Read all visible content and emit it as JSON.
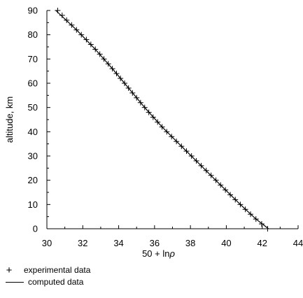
{
  "chart_data": {
    "type": "line",
    "title": "",
    "xlabel": "50 + ln",
    "xlabel_symbol": "ρ",
    "ylabel": "altitude, km",
    "xlim": [
      30,
      44
    ],
    "ylim": [
      0,
      90
    ],
    "xticks": [
      30,
      32,
      34,
      36,
      38,
      40,
      42,
      44
    ],
    "yticks": [
      0,
      10,
      20,
      30,
      40,
      50,
      60,
      70,
      80,
      90
    ],
    "grid": false,
    "legend_position": "bottom-left",
    "series": [
      {
        "name": "experimental data",
        "style": "markers",
        "marker": "+",
        "points": [
          [
            30.6,
            90
          ],
          [
            30.85,
            88
          ],
          [
            31.1,
            86
          ],
          [
            31.38,
            84
          ],
          [
            31.65,
            82
          ],
          [
            31.92,
            80
          ],
          [
            32.2,
            78
          ],
          [
            32.45,
            76
          ],
          [
            32.7,
            74
          ],
          [
            32.95,
            72
          ],
          [
            33.18,
            70
          ],
          [
            33.42,
            68
          ],
          [
            33.65,
            66
          ],
          [
            33.88,
            64
          ],
          [
            34.1,
            62
          ],
          [
            34.33,
            60
          ],
          [
            34.55,
            58
          ],
          [
            34.77,
            56
          ],
          [
            35.0,
            54
          ],
          [
            35.22,
            52
          ],
          [
            35.45,
            50
          ],
          [
            35.68,
            48
          ],
          [
            35.92,
            46
          ],
          [
            36.17,
            44
          ],
          [
            36.42,
            42
          ],
          [
            36.68,
            40
          ],
          [
            36.95,
            38
          ],
          [
            37.22,
            36
          ],
          [
            37.5,
            34
          ],
          [
            37.78,
            32
          ],
          [
            38.06,
            30
          ],
          [
            38.33,
            28
          ],
          [
            38.6,
            26
          ],
          [
            38.88,
            24
          ],
          [
            39.15,
            22
          ],
          [
            39.42,
            20
          ],
          [
            39.68,
            18
          ],
          [
            39.95,
            16
          ],
          [
            40.22,
            14
          ],
          [
            40.5,
            12
          ],
          [
            40.78,
            10
          ],
          [
            41.06,
            8
          ],
          [
            41.35,
            6
          ],
          [
            41.65,
            4
          ],
          [
            41.97,
            2
          ],
          [
            42.3,
            0
          ]
        ]
      },
      {
        "name": "computed data",
        "style": "line",
        "points": [
          [
            30.5,
            90
          ],
          [
            31.65,
            82
          ],
          [
            32.7,
            74
          ],
          [
            33.65,
            66
          ],
          [
            34.55,
            58
          ],
          [
            35.45,
            50
          ],
          [
            36.42,
            42
          ],
          [
            37.5,
            34
          ],
          [
            38.6,
            26
          ],
          [
            39.68,
            18
          ],
          [
            40.78,
            10
          ],
          [
            41.65,
            4
          ],
          [
            42.35,
            0
          ]
        ]
      }
    ]
  },
  "legend": {
    "items": [
      {
        "symbol": "plus",
        "label": "experimental data"
      },
      {
        "symbol": "line",
        "label": "computed data"
      }
    ]
  }
}
